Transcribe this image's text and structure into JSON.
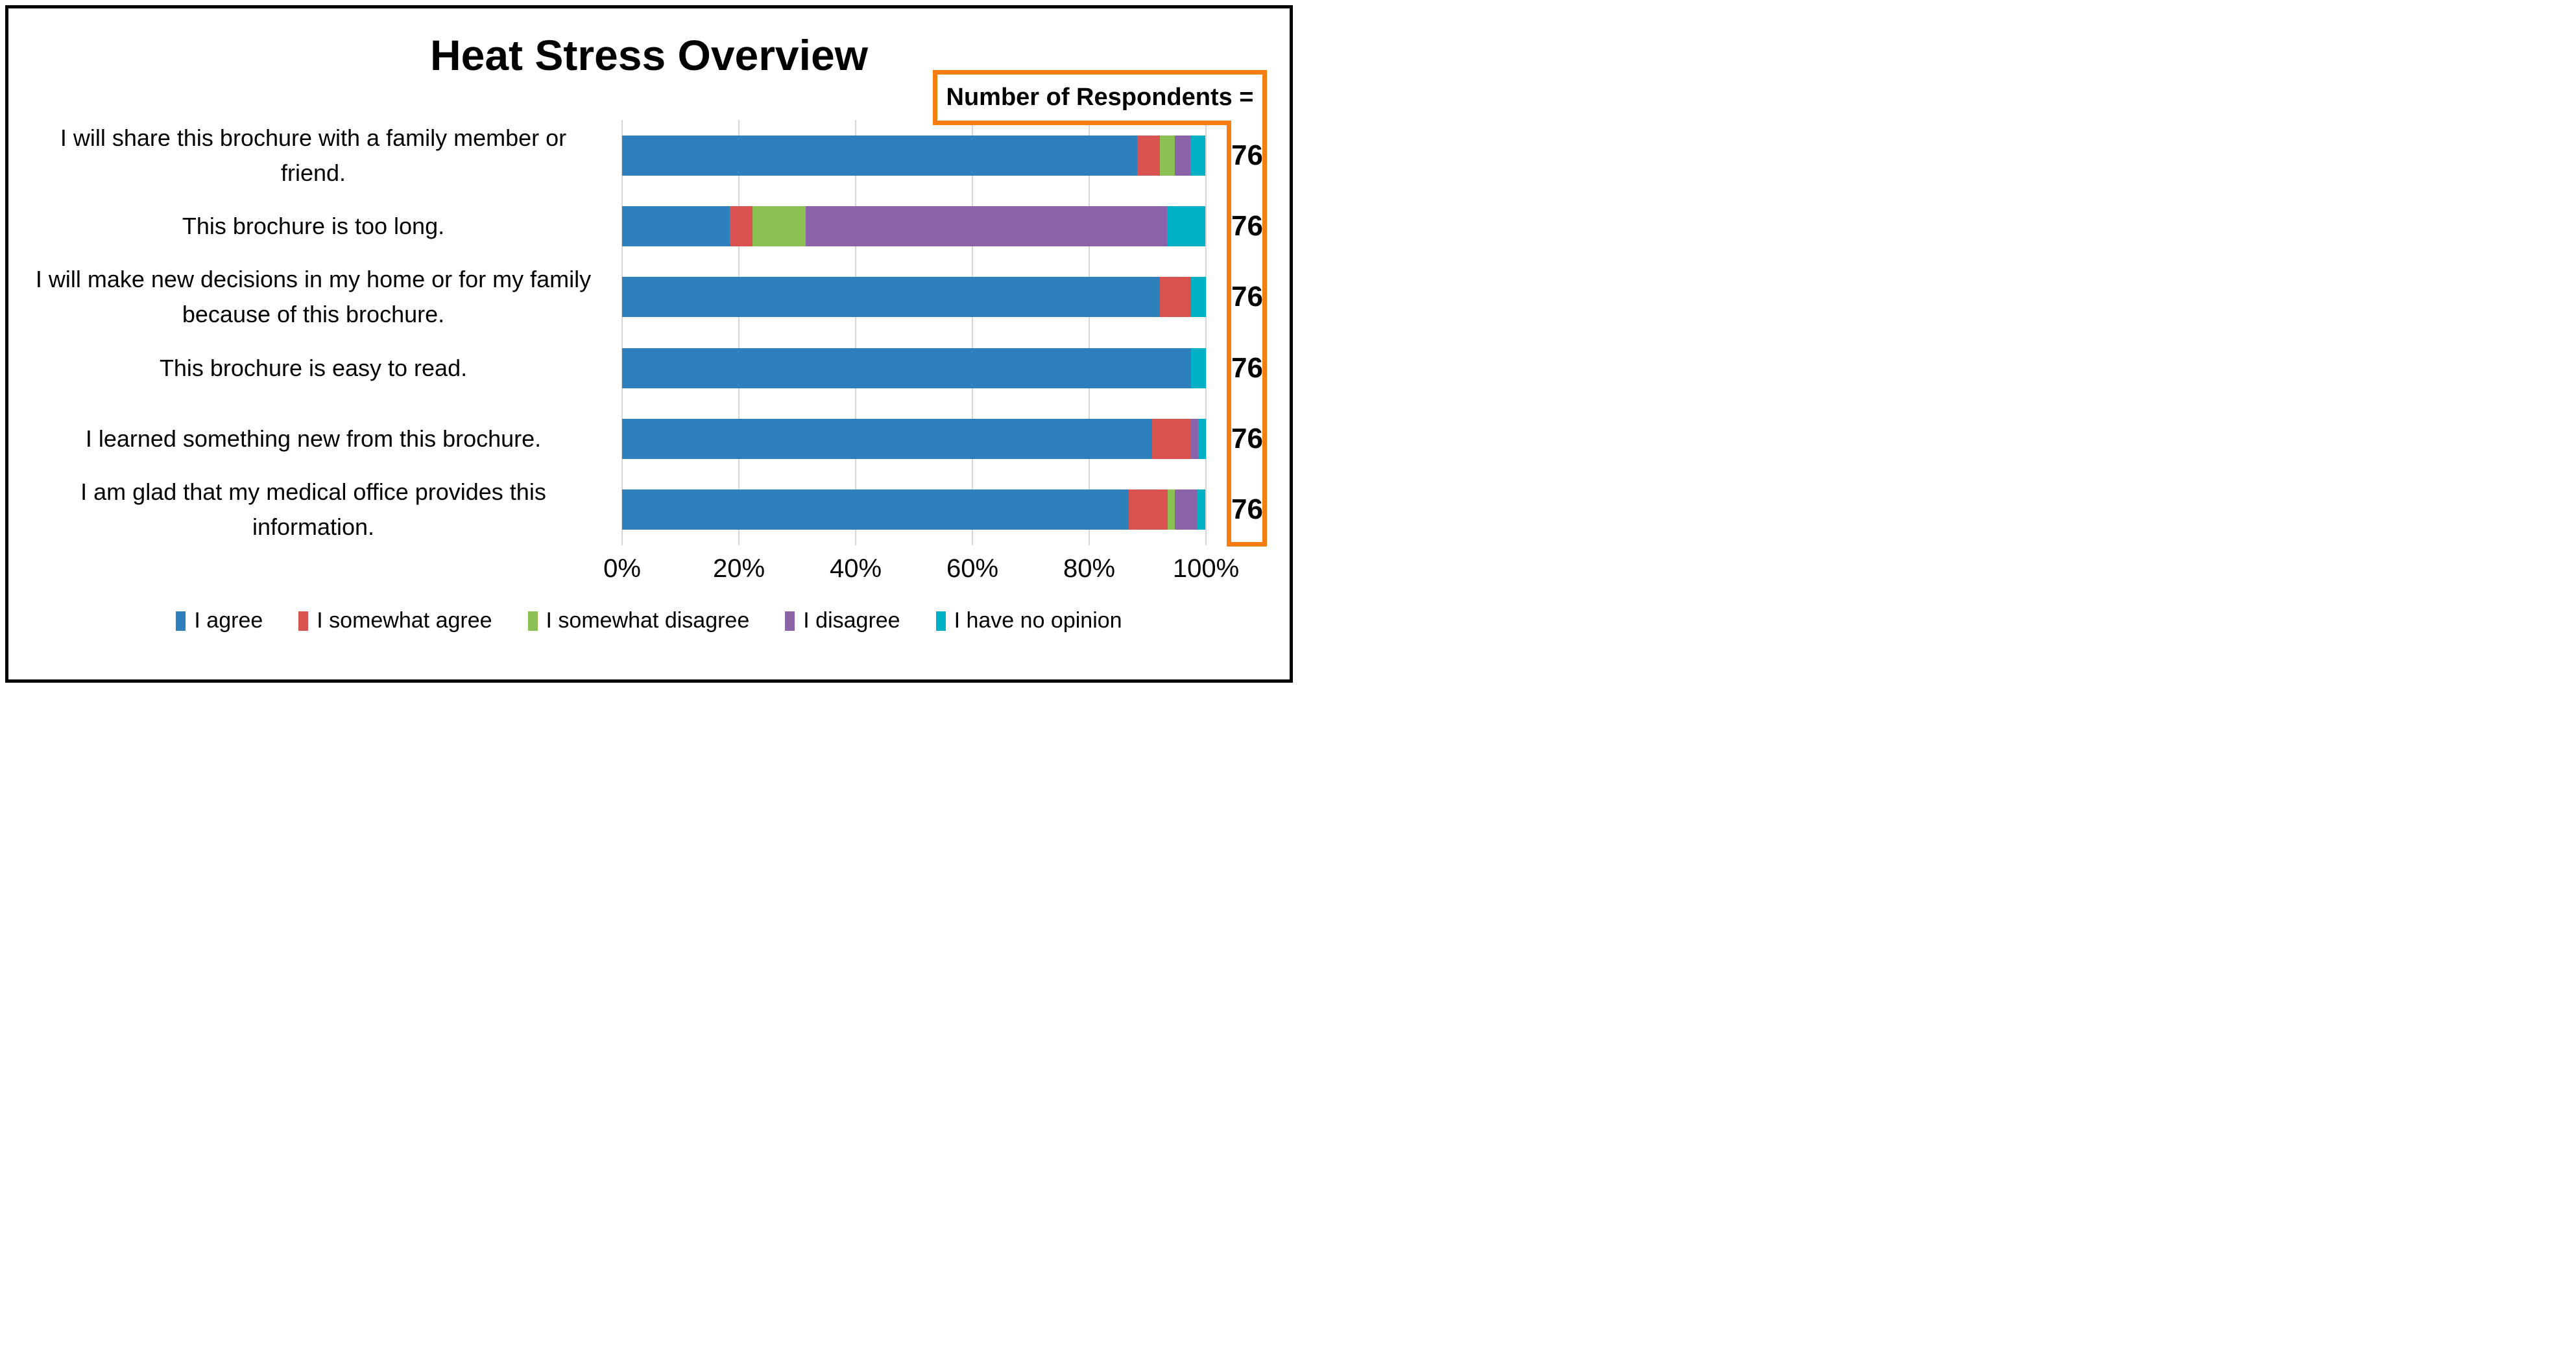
{
  "title": "Heat Stress Overview",
  "annotation": {
    "label": "Number of Respondents =",
    "border_color": "#f87d11"
  },
  "chart_data": {
    "type": "bar",
    "orientation": "horizontal",
    "stacked": true,
    "value_unit": "percent of respondents",
    "categories": [
      "I will share this brochure with a family member or friend.",
      "This brochure is too long.",
      "I will make new decisions in my home or for my family because of this brochure.",
      "This brochure is easy to read.",
      "I learned something new from this brochure.",
      "I am glad that my medical office provides this information."
    ],
    "series": [
      {
        "name": "I agree",
        "color": "#2e80bd",
        "values": [
          88.2,
          18.4,
          92.1,
          97.4,
          90.8,
          86.8
        ]
      },
      {
        "name": "I somewhat agree",
        "color": "#d95450",
        "values": [
          3.9,
          3.9,
          5.3,
          0,
          6.6,
          6.6
        ]
      },
      {
        "name": "I somewhat disagree",
        "color": "#8dc052",
        "values": [
          2.6,
          9.2,
          0,
          0,
          0,
          1.3
        ]
      },
      {
        "name": "I disagree",
        "color": "#8a63a8",
        "values": [
          2.6,
          61.8,
          0,
          0,
          1.3,
          3.9
        ]
      },
      {
        "name": "I have no opinion",
        "color": "#00b0c7",
        "values": [
          2.6,
          6.6,
          2.6,
          2.6,
          1.3,
          1.3
        ]
      }
    ],
    "respondents_per_category": [
      "76",
      "76",
      "76",
      "76",
      "76",
      "76"
    ],
    "x_tick_labels": [
      "0%",
      "20%",
      "40%",
      "60%",
      "80%",
      "100%"
    ],
    "xlim": [
      0,
      100
    ],
    "gridlines": "vertical",
    "gridline_color": "#d6d6d6",
    "frame_border_color": "#000000",
    "legend_position": "bottom"
  }
}
